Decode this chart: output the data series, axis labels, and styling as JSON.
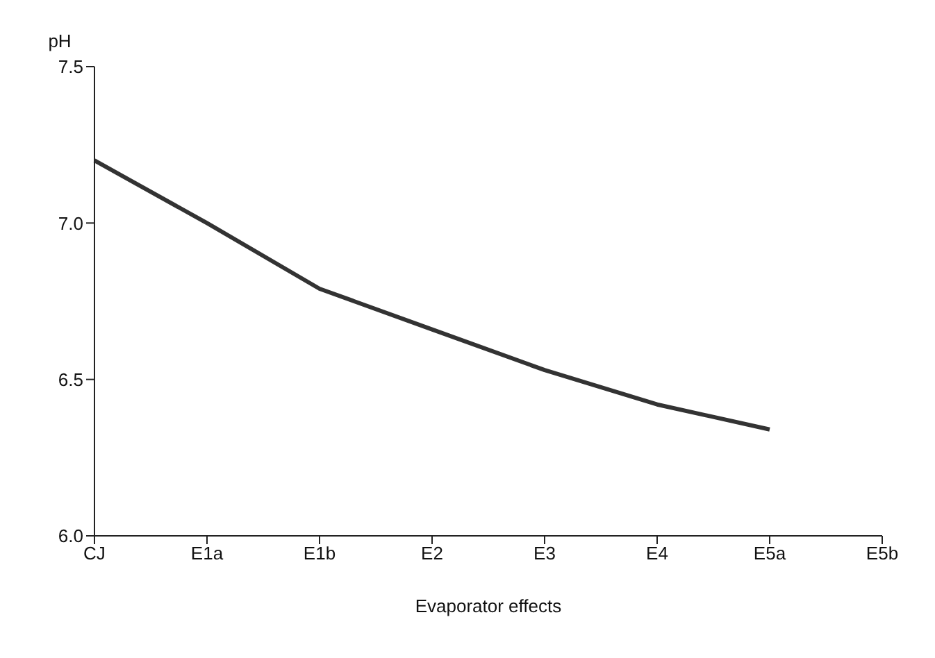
{
  "chart_data": {
    "type": "line",
    "xlabel": "Evaporator effects",
    "ylabel": "pH",
    "categories": [
      "CJ",
      "E1a",
      "E1b",
      "E2",
      "E3",
      "E4",
      "E5a",
      "E5b"
    ],
    "series": [
      {
        "color": "#333333",
        "values": [
          7.2,
          7.0,
          6.79,
          6.66,
          6.53,
          6.42,
          6.34,
          null
        ]
      }
    ],
    "ylim": [
      6.0,
      7.5
    ],
    "yticks": [
      {
        "value": 6.0,
        "label": "6.0"
      },
      {
        "value": 6.5,
        "label": "6.5"
      },
      {
        "value": 7.0,
        "label": "7.0"
      },
      {
        "value": 7.5,
        "label": "7.5"
      }
    ],
    "grid": false,
    "legend": false,
    "marker": "none",
    "line_style": "solid"
  }
}
